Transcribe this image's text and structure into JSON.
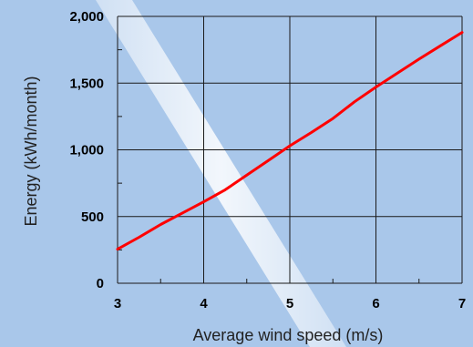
{
  "chart_data": {
    "type": "line",
    "xlabel": "Average wind speed (m/s)",
    "ylabel": "Energy (kWh/month)",
    "xlim": [
      3,
      7
    ],
    "ylim": [
      0,
      2000
    ],
    "x_ticks": [
      3,
      4,
      5,
      6,
      7
    ],
    "x_tick_labels": [
      "3",
      "4",
      "5",
      "6",
      "7"
    ],
    "y_ticks": [
      0,
      500,
      1000,
      1500,
      2000
    ],
    "y_tick_labels": [
      "0",
      "500",
      "1,000",
      "1,500",
      "2,000"
    ],
    "grid": true,
    "series": [
      {
        "color": "#ff0000",
        "x": [
          3.0,
          3.25,
          3.5,
          3.75,
          4.0,
          4.25,
          4.5,
          4.75,
          5.0,
          5.25,
          5.5,
          5.75,
          6.0,
          6.25,
          6.5,
          6.75,
          7.0
        ],
        "y": [
          255,
          345,
          440,
          525,
          610,
          700,
          810,
          920,
          1030,
          1130,
          1235,
          1360,
          1470,
          1575,
          1680,
          1780,
          1880
        ]
      }
    ],
    "colors": {
      "background": "#a9c7ea",
      "grid": "#1a1a1a",
      "line": "#ff0000"
    }
  }
}
